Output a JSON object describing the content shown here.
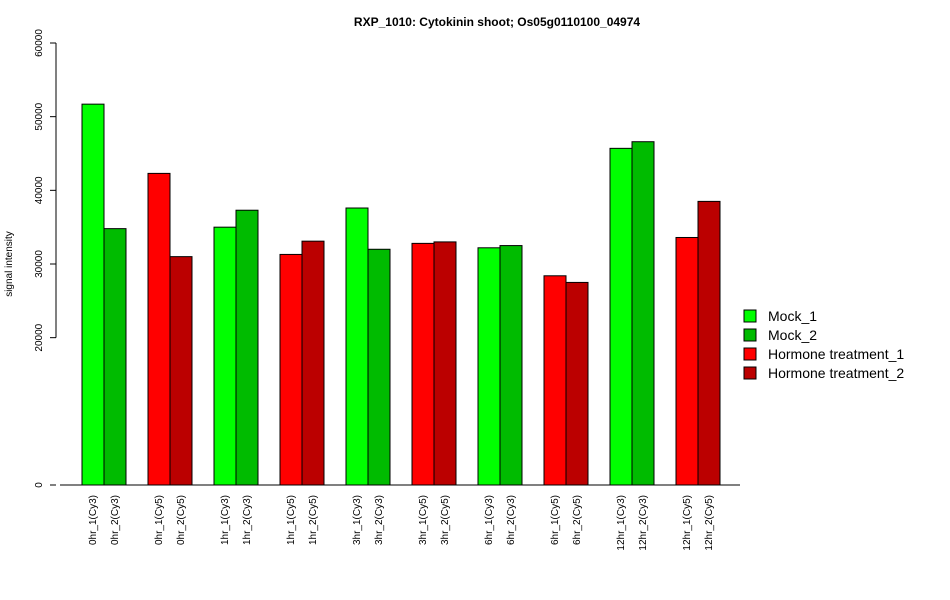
{
  "chart_data": {
    "type": "bar",
    "title": "RXP_1010: Cytokinin shoot; Os05g0110100_04974",
    "ylabel": "signal intensity",
    "xlabel": "",
    "ylim": [
      0,
      60000
    ],
    "yticks": [
      0,
      20000,
      30000,
      40000,
      50000,
      60000
    ],
    "grid": false,
    "legend_position": "right",
    "series": [
      {
        "name": "Mock_1",
        "color": "#00ff00"
      },
      {
        "name": "Mock_2",
        "color": "#00bb00"
      },
      {
        "name": "Hormone treatment_1",
        "color": "#ff0000"
      },
      {
        "name": "Hormone treatment_2",
        "color": "#bb0000"
      }
    ],
    "bars": [
      {
        "label": "0hr_1(Cy3)",
        "value": 51700,
        "series": 0
      },
      {
        "label": "0hr_2(Cy3)",
        "value": 34800,
        "series": 1
      },
      {
        "label": "0hr_1(Cy5)",
        "value": 42300,
        "series": 2
      },
      {
        "label": "0hr_2(Cy5)",
        "value": 31000,
        "series": 3
      },
      {
        "label": "1hr_1(Cy3)",
        "value": 35000,
        "series": 0
      },
      {
        "label": "1hr_2(Cy3)",
        "value": 37300,
        "series": 1
      },
      {
        "label": "1hr_1(Cy5)",
        "value": 31300,
        "series": 2
      },
      {
        "label": "1hr_2(Cy5)",
        "value": 33100,
        "series": 3
      },
      {
        "label": "3hr_1(Cy3)",
        "value": 37600,
        "series": 0
      },
      {
        "label": "3hr_2(Cy3)",
        "value": 32000,
        "series": 1
      },
      {
        "label": "3hr_1(Cy5)",
        "value": 32800,
        "series": 2
      },
      {
        "label": "3hr_2(Cy5)",
        "value": 33000,
        "series": 3
      },
      {
        "label": "6hr_1(Cy3)",
        "value": 32200,
        "series": 0
      },
      {
        "label": "6hr_2(Cy3)",
        "value": 32500,
        "series": 1
      },
      {
        "label": "6hr_1(Cy5)",
        "value": 28400,
        "series": 2
      },
      {
        "label": "6hr_2(Cy5)",
        "value": 27500,
        "series": 3
      },
      {
        "label": "12hr_1(Cy3)",
        "value": 45700,
        "series": 0
      },
      {
        "label": "12hr_2(Cy3)",
        "value": 46600,
        "series": 1
      },
      {
        "label": "12hr_1(Cy5)",
        "value": 33600,
        "series": 2
      },
      {
        "label": "12hr_2(Cy5)",
        "value": 38500,
        "series": 3
      }
    ]
  }
}
